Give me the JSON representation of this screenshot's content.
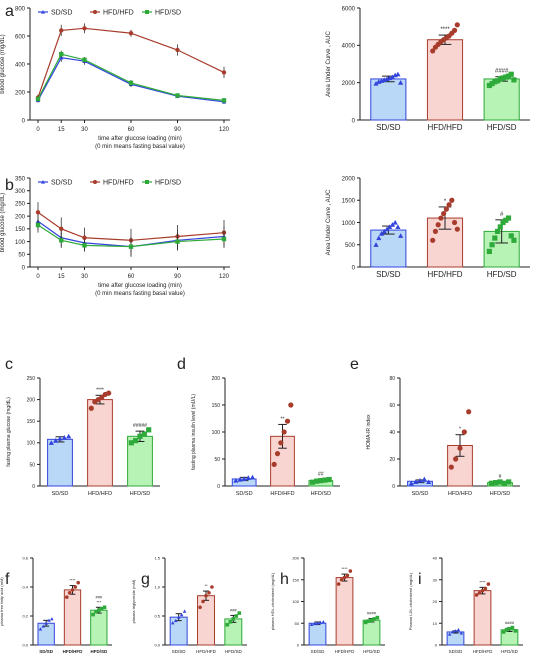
{
  "colors": {
    "sd": "#3344dd",
    "hfd": "#a83c2c",
    "switch": "#2eaa3a",
    "sd_fill": "#b9d8f7",
    "hfd_fill": "#f9d5d2",
    "switch_fill": "#b6f3b4",
    "axis": "#222222"
  },
  "panels": [
    {
      "letter": "a",
      "chart_data": {
        "type": "line",
        "xlabel": "time after glucose loading (min)",
        "xlabel2": "(0 min means fasting basal value)",
        "ylabel": "blood glucose (mg/dL)",
        "x": [
          0,
          15,
          30,
          60,
          90,
          120
        ],
        "xticks": [
          "0",
          "15",
          "30",
          "60",
          "90",
          "120"
        ],
        "yticks": [
          "0",
          "200",
          "400",
          "600",
          "800"
        ],
        "ylim": [
          0,
          800
        ],
        "legend": "top-left",
        "series": [
          {
            "name": "SD/SD",
            "key": "sd",
            "values": [
              140,
              445,
              420,
              255,
              170,
              130
            ],
            "err": [
              15,
              30,
              25,
              20,
              15,
              15
            ]
          },
          {
            "name": "HFD/HFD",
            "key": "hfd",
            "values": [
              160,
              640,
              655,
              620,
              500,
              340
            ],
            "err": [
              20,
              40,
              35,
              25,
              40,
              40
            ]
          },
          {
            "name": "HFD/SD",
            "key": "switch",
            "values": [
              150,
              470,
              430,
              265,
              175,
              140
            ],
            "err": [
              15,
              25,
              20,
              20,
              15,
              15
            ]
          }
        ]
      }
    },
    {
      "letter": "",
      "chart_data": {
        "type": "bar",
        "ylabel": "Area Under Curve , AUC",
        "categories": [
          "SD/SD",
          "HFD/HFD",
          "HFD/SD"
        ],
        "keys": [
          "sd",
          "hfd",
          "switch"
        ],
        "values": [
          2200,
          4300,
          2200
        ],
        "err": [
          150,
          250,
          120
        ],
        "ylim": [
          0,
          6000
        ],
        "yticks": [
          "0",
          "2000",
          "4000",
          "6000"
        ],
        "sig": [
          "",
          "****",
          "####"
        ],
        "points": [
          [
            1950,
            2050,
            2100,
            2150,
            2200,
            2250,
            2300,
            2400,
            2450,
            2000
          ],
          [
            3700,
            3900,
            4050,
            4200,
            4300,
            4400,
            4500,
            4650,
            4800,
            5100
          ],
          [
            1850,
            1950,
            2050,
            2100,
            2200,
            2250,
            2300,
            2350,
            2450,
            2150
          ]
        ]
      }
    },
    {
      "letter": "b",
      "chart_data": {
        "type": "line",
        "xlabel": "time after glucose loading (min)",
        "xlabel2": "(0 min means fasting basal value)",
        "ylabel": "blood glucose (mg/dL)",
        "x": [
          0,
          15,
          30,
          60,
          90,
          120
        ],
        "xticks": [
          "0",
          "15",
          "30",
          "60",
          "90",
          "120"
        ],
        "yticks": [
          "0",
          "50",
          "100",
          "150",
          "200",
          "250",
          "300",
          "350"
        ],
        "ylim": [
          0,
          350
        ],
        "legend": "top-left",
        "series": [
          {
            "name": "SD/SD",
            "key": "sd",
            "values": [
              180,
              115,
              95,
              80,
              105,
              120
            ],
            "err": [
              35,
              35,
              30,
              40,
              40,
              40
            ]
          },
          {
            "name": "HFD/HFD",
            "key": "hfd",
            "values": [
              215,
              150,
              115,
              105,
              120,
              135
            ],
            "err": [
              40,
              45,
              40,
              45,
              45,
              50
            ]
          },
          {
            "name": "HFD/SD",
            "key": "switch",
            "values": [
              165,
              105,
              85,
              80,
              100,
              110
            ],
            "err": [
              30,
              30,
              25,
              35,
              35,
              35
            ]
          }
        ]
      }
    },
    {
      "letter": "",
      "chart_data": {
        "type": "bar",
        "ylabel": "Area Under Curve , AUC",
        "categories": [
          "SD/SD",
          "HFD/HFD",
          "HFD/SD"
        ],
        "keys": [
          "sd",
          "hfd",
          "switch"
        ],
        "values": [
          830,
          1100,
          800
        ],
        "err": [
          90,
          250,
          260
        ],
        "ylim": [
          0,
          2000
        ],
        "yticks": [
          "0",
          "500",
          "1000",
          "1500",
          "2000"
        ],
        "sig": [
          "",
          "*",
          "#"
        ],
        "points": [
          [
            500,
            650,
            750,
            800,
            850,
            900,
            950,
            1000,
            900,
            700
          ],
          [
            600,
            800,
            950,
            1100,
            1200,
            1300,
            1400,
            1500,
            1000,
            850
          ],
          [
            350,
            500,
            650,
            800,
            900,
            1000,
            1050,
            1100,
            700,
            600
          ]
        ]
      }
    },
    {
      "letter": "c",
      "chart_data": {
        "type": "bar",
        "ylabel": "fasting plasma glucose (mg/dL)",
        "categories": [
          "SD/SD",
          "HFD/HFD",
          "HFD/SD"
        ],
        "keys": [
          "sd",
          "hfd",
          "switch"
        ],
        "values": [
          108,
          200,
          115
        ],
        "err": [
          6,
          10,
          12
        ],
        "ylim": [
          0,
          250
        ],
        "yticks": [
          "0",
          "50",
          "100",
          "150",
          "200",
          "250"
        ],
        "sig": [
          "",
          "****",
          "#####"
        ],
        "points": [
          [
            100,
            105,
            110,
            112,
            115
          ],
          [
            180,
            195,
            200,
            205,
            212,
            215
          ],
          [
            100,
            105,
            115,
            120,
            130
          ]
        ]
      }
    },
    {
      "letter": "d",
      "chart_data": {
        "type": "bar",
        "ylabel": "fasting plasma insulin level (mU/L)",
        "categories": [
          "SD/SD",
          "HFD/HFD",
          "HFD/SD"
        ],
        "keys": [
          "sd",
          "hfd",
          "switch"
        ],
        "values": [
          13,
          92,
          10
        ],
        "err": [
          3,
          22,
          2
        ],
        "ylim": [
          0,
          200
        ],
        "yticks": [
          "0",
          "50",
          "100",
          "150",
          "200"
        ],
        "sig": [
          "",
          "**",
          "##"
        ],
        "points": [
          [
            10,
            12,
            13,
            15,
            16
          ],
          [
            40,
            60,
            80,
            100,
            120,
            150
          ],
          [
            7,
            9,
            10,
            11,
            12
          ]
        ]
      }
    },
    {
      "letter": "e",
      "chart_data": {
        "type": "bar",
        "ylabel": "HOMA-IR index",
        "categories": [
          "SD/SD",
          "HFD/HFD",
          "HFD/SD"
        ],
        "keys": [
          "sd",
          "hfd",
          "switch"
        ],
        "values": [
          3.5,
          30,
          2.5
        ],
        "err": [
          1,
          8,
          0.5
        ],
        "ylim": [
          0,
          80
        ],
        "yticks": [
          "0",
          "20",
          "40",
          "60",
          "80"
        ],
        "sig": [
          "",
          "*",
          "#"
        ],
        "points": [
          [
            2,
            3,
            4,
            5,
            3
          ],
          [
            14,
            20,
            28,
            40,
            55
          ],
          [
            2,
            2.5,
            3,
            2,
            3
          ]
        ]
      }
    },
    {
      "letter": "f",
      "chart_data": {
        "type": "bar",
        "ylabel": "plasma free fatty acid (mM)",
        "categories": [
          "SD/SD",
          "HFD/HFD",
          "HFD/SD"
        ],
        "keys": [
          "sd",
          "hfd",
          "switch"
        ],
        "values": [
          0.15,
          0.38,
          0.24
        ],
        "err": [
          0.02,
          0.03,
          0.02
        ],
        "ylim": [
          0,
          0.6
        ],
        "yticks": [
          "0.0",
          "0.2",
          "0.4",
          "0.6"
        ],
        "sig": [
          "",
          "****",
          "###|***"
        ],
        "bold_ticks": true,
        "points": [
          [
            0.11,
            0.13,
            0.15,
            0.17,
            0.18
          ],
          [
            0.33,
            0.36,
            0.38,
            0.4,
            0.43
          ],
          [
            0.21,
            0.23,
            0.24,
            0.25,
            0.26
          ]
        ]
      }
    },
    {
      "letter": "g",
      "chart_data": {
        "type": "bar",
        "ylabel": "plasma triglyceride (mM)",
        "categories": [
          "SD/SD",
          "HFD/HFD",
          "HFD/SD"
        ],
        "keys": [
          "sd",
          "hfd",
          "switch"
        ],
        "values": [
          0.48,
          0.85,
          0.45
        ],
        "err": [
          0.06,
          0.08,
          0.06
        ],
        "ylim": [
          0,
          1.5
        ],
        "yticks": [
          "0.0",
          "0.5",
          "1.0",
          "1.5"
        ],
        "sig": [
          "",
          "**",
          "###"
        ],
        "points": [
          [
            0.38,
            0.42,
            0.48,
            0.52,
            0.58
          ],
          [
            0.65,
            0.75,
            0.85,
            0.9,
            1.0
          ],
          [
            0.35,
            0.4,
            0.45,
            0.5,
            0.55
          ]
        ]
      }
    },
    {
      "letter": "h",
      "chart_data": {
        "type": "bar",
        "ylabel": "plasma HDL-cholesterol (mg/dL)",
        "categories": [
          "SD/SD",
          "HFD/HFD",
          "HFD/SD"
        ],
        "keys": [
          "sd",
          "hfd",
          "switch"
        ],
        "values": [
          50,
          155,
          57
        ],
        "err": [
          3,
          8,
          4
        ],
        "ylim": [
          0,
          200
        ],
        "yticks": [
          "0",
          "50",
          "100",
          "150",
          "200"
        ],
        "sig": [
          "",
          "****",
          "####"
        ],
        "points": [
          [
            47,
            49,
            50,
            52,
            53
          ],
          [
            140,
            150,
            155,
            160,
            170
          ],
          [
            52,
            55,
            57,
            60,
            63
          ]
        ]
      }
    },
    {
      "letter": "i",
      "chart_data": {
        "type": "bar",
        "ylabel": "Plasma LDL-cholesterol (mg/dL)",
        "categories": [
          "SD/SD",
          "HFD/HFD",
          "HFD/SD"
        ],
        "keys": [
          "sd",
          "hfd",
          "switch"
        ],
        "values": [
          6,
          25,
          7
        ],
        "err": [
          0.5,
          1.5,
          0.8
        ],
        "ylim": [
          0,
          40
        ],
        "yticks": [
          "0",
          "10",
          "20",
          "30",
          "40"
        ],
        "sig": [
          "",
          "****",
          "####"
        ],
        "points": [
          [
            5,
            6,
            6.5,
            7,
            5.5
          ],
          [
            23,
            24,
            25,
            26,
            28
          ],
          [
            6,
            7,
            7.5,
            8,
            6.5
          ]
        ]
      }
    }
  ]
}
